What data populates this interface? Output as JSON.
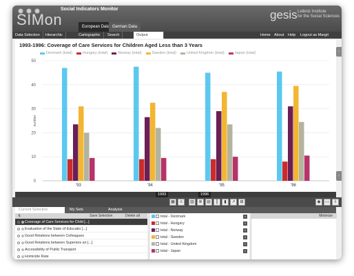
{
  "app": {
    "logo": "SIMon",
    "subtitle": "Social Indicators Monitor",
    "tabs": [
      "European Data",
      "German Data"
    ],
    "gesis_logo": "gesis",
    "gesis_line1": "Leibniz Institute",
    "gesis_line2": "for the Social Sciences"
  },
  "nav": {
    "items": [
      "Data Selection",
      "Hierarchic",
      "Cartographic",
      "Search",
      "Output"
    ],
    "right": [
      "Home",
      "About",
      "Help",
      "Logout as Margit"
    ]
  },
  "chart_data": {
    "type": "bar",
    "title": "1993-1996: Coverage of Care Services for Children Aged Less than 3 Years",
    "ylabel": "number",
    "xlabel": "",
    "ylim": [
      0,
      50
    ],
    "yticks": [
      0,
      10,
      20,
      30,
      40,
      50
    ],
    "categories": [
      "'93",
      "'94",
      "'95",
      "'96"
    ],
    "series": [
      {
        "name": "Denmark (total)",
        "color": "#5bc8ef",
        "values": [
          47,
          47.5,
          45,
          45.5
        ]
      },
      {
        "name": "Hungary (total)",
        "color": "#cc2b2b",
        "values": [
          9,
          9,
          9,
          8
        ]
      },
      {
        "name": "Norway (total)",
        "color": "#6a1f55",
        "values": [
          23.5,
          26.5,
          29,
          31
        ]
      },
      {
        "name": "Sweden (total)",
        "color": "#f2b632",
        "values": [
          31,
          32.5,
          37,
          39.5
        ]
      },
      {
        "name": "United Kingdom (total)",
        "color": "#b3b3a0",
        "values": [
          20,
          22,
          23.5,
          24.5
        ]
      },
      {
        "name": "Japan (total)",
        "color": "#b8336a",
        "values": [
          9.5,
          9.5,
          10,
          10.5
        ]
      }
    ],
    "grid": true,
    "legend": "top"
  },
  "timeline": {
    "year1": "1993",
    "year2": "1996"
  },
  "bottom_tabs": [
    "Current Selection",
    "My Sets",
    "Analysis"
  ],
  "sets_bar": {
    "save": "Save Selection",
    "delete": "Delete all"
  },
  "current_selection": [
    "Coverage of Care Services for Child [...]",
    "Evaluation of the State of Educatio [...]",
    "Good Relations between Colleagues",
    "Good Relations between Superiors an [...]",
    "Accessibility of Public Transport",
    "Homicide Rate"
  ],
  "countries": [
    {
      "label": "total - Denmark",
      "color": "#5bc8ef"
    },
    {
      "label": "total - Hungary",
      "color": "#cc2b2b"
    },
    {
      "label": "total - Norway",
      "color": "#6a1f55"
    },
    {
      "label": "total - Sweden",
      "color": "#f2b632"
    },
    {
      "label": "total - United Kingdom",
      "color": "#b3b3a0"
    },
    {
      "label": "total - Japan",
      "color": "#b8336a"
    }
  ],
  "right_panel": {
    "minimize": "Minimize"
  }
}
